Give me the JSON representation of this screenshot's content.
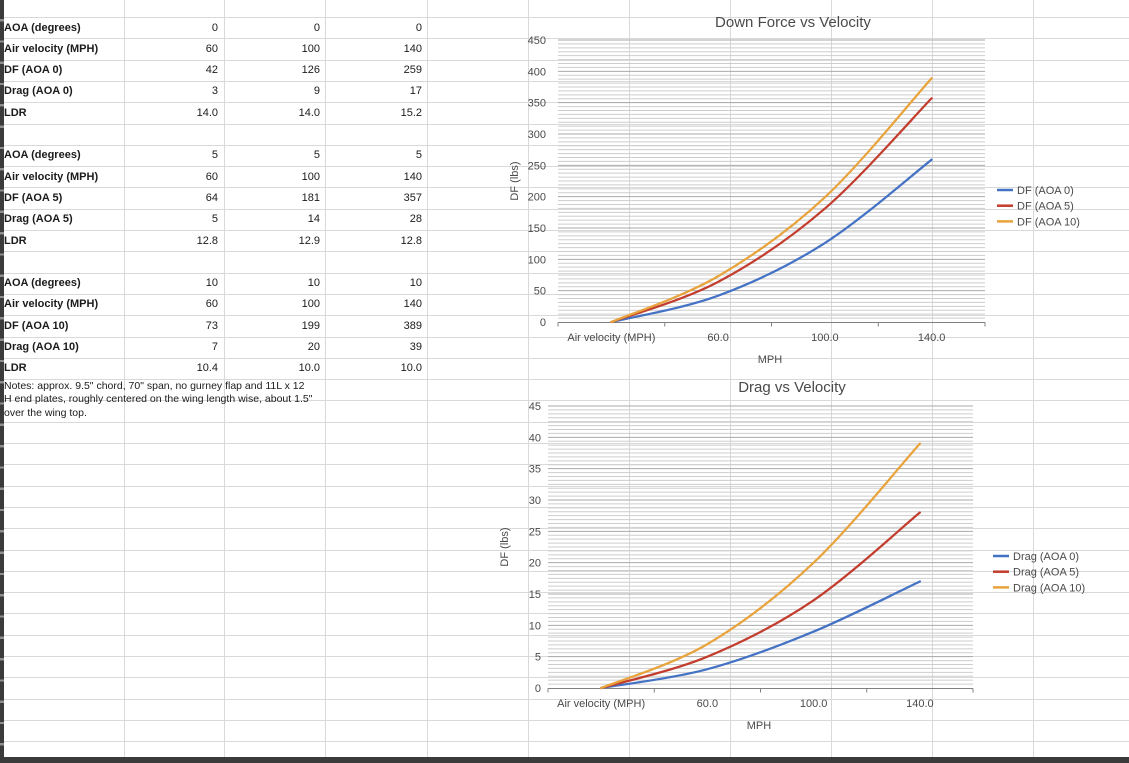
{
  "sheet": {
    "tables": [
      {
        "rows": [
          {
            "label": "AOA (degrees)",
            "values": [
              "0",
              "0",
              "0"
            ]
          },
          {
            "label": "Air velocity (MPH)",
            "values": [
              "60",
              "100",
              "140"
            ]
          },
          {
            "label": "DF (AOA 0)",
            "values": [
              "42",
              "126",
              "259"
            ]
          },
          {
            "label": "Drag (AOA 0)",
            "values": [
              "3",
              "9",
              "17"
            ]
          },
          {
            "label": "LDR",
            "values": [
              "14.0",
              "14.0",
              "15.2"
            ]
          }
        ]
      },
      {
        "rows": [
          {
            "label": "AOA (degrees)",
            "values": [
              "5",
              "5",
              "5"
            ]
          },
          {
            "label": "Air velocity (MPH)",
            "values": [
              "60",
              "100",
              "140"
            ]
          },
          {
            "label": "DF (AOA 5)",
            "values": [
              "64",
              "181",
              "357"
            ]
          },
          {
            "label": "Drag (AOA 5)",
            "values": [
              "5",
              "14",
              "28"
            ]
          },
          {
            "label": "LDR",
            "values": [
              "12.8",
              "12.9",
              "12.8"
            ]
          }
        ]
      },
      {
        "rows": [
          {
            "label": "AOA (degrees)",
            "values": [
              "10",
              "10",
              "10"
            ]
          },
          {
            "label": "Air velocity (MPH)",
            "values": [
              "60",
              "100",
              "140"
            ]
          },
          {
            "label": "DF (AOA 10)",
            "values": [
              "73",
              "199",
              "389"
            ]
          },
          {
            "label": "Drag (AOA 10)",
            "values": [
              "7",
              "20",
              "39"
            ]
          },
          {
            "label": "LDR",
            "values": [
              "10.4",
              "10.0",
              "10.0"
            ]
          }
        ]
      }
    ],
    "notes": "Notes: approx. 9.5\" chord, 70\" span, no gurney flap and 11L x 12\nH end plates, roughly centered on the wing length wise, about 1.5\"\nover the wing top."
  },
  "chart_data": [
    {
      "type": "line",
      "title": "Down Force vs Velocity",
      "categories": [
        "Air velocity (MPH)",
        "60.0",
        "100.0",
        "140.0"
      ],
      "series": [
        {
          "name": "DF (AOA 0)",
          "color": "#4472C4",
          "values": [
            0,
            42,
            126,
            259
          ]
        },
        {
          "name": "DF (AOA 5)",
          "color": "#C33D2E",
          "values": [
            0,
            64,
            181,
            357
          ]
        },
        {
          "name": "DF (AOA 10)",
          "color": "#E8A33C",
          "values": [
            0,
            73,
            199,
            389
          ]
        }
      ],
      "xlabel": "MPH",
      "ylabel": "DF (lbs)",
      "ylim": [
        0,
        450
      ],
      "ytick": 50,
      "legend_position": "right",
      "grid": "horizontal major + dense minor",
      "smooth": true
    },
    {
      "type": "line",
      "title": "Drag vs Velocity",
      "categories": [
        "Air velocity (MPH)",
        "60.0",
        "100.0",
        "140.0"
      ],
      "series": [
        {
          "name": "Drag (AOA 0)",
          "color": "#4472C4",
          "values": [
            0,
            3,
            9,
            17
          ]
        },
        {
          "name": "Drag (AOA 5)",
          "color": "#C33D2E",
          "values": [
            0,
            5,
            14,
            28
          ]
        },
        {
          "name": "Drag (AOA 10)",
          "color": "#E8A33C",
          "values": [
            0,
            7,
            20,
            39
          ]
        }
      ],
      "xlabel": "MPH",
      "ylabel": "DF (lbs)",
      "ylim": [
        0,
        45
      ],
      "ytick": 5,
      "legend_position": "right",
      "grid": "horizontal major + dense minor",
      "smooth": true
    }
  ],
  "colors": {
    "gridline": "#d9d9d9",
    "chart_minor_grid": "#cdcdcd",
    "chart_major_grid": "#a9a9a9",
    "axis": "#808080",
    "text": "#4a4a4a"
  }
}
